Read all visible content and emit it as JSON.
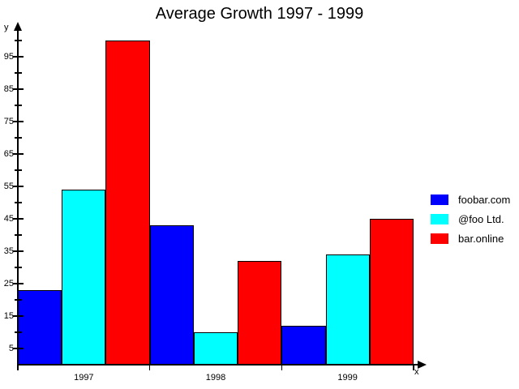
{
  "title": "Average Growth 1997 - 1999",
  "chart_data": {
    "type": "bar",
    "title": "Average Growth 1997 - 1999",
    "categories": [
      "1997",
      "1998",
      "1999"
    ],
    "series": [
      {
        "name": "foobar.com",
        "color": "#0000FF",
        "values": [
          23,
          43,
          12
        ]
      },
      {
        "name": "@foo Ltd.",
        "color": "#00FFFF",
        "values": [
          54,
          10,
          34
        ]
      },
      {
        "name": "bar.online",
        "color": "#FF0000",
        "values": [
          100,
          32,
          45
        ]
      }
    ],
    "xlabel": "x",
    "ylabel": "y",
    "ylim": [
      0,
      105
    ],
    "y_major_ticks": [
      5,
      15,
      25,
      35,
      45,
      55,
      65,
      75,
      85,
      95
    ],
    "y_minor_ticks": [
      10,
      20,
      30,
      40,
      50,
      60,
      70,
      80,
      90,
      100
    ],
    "grid": false,
    "legend_position": "right",
    "background": "#FFFFFF",
    "axis_color": "#000000"
  }
}
